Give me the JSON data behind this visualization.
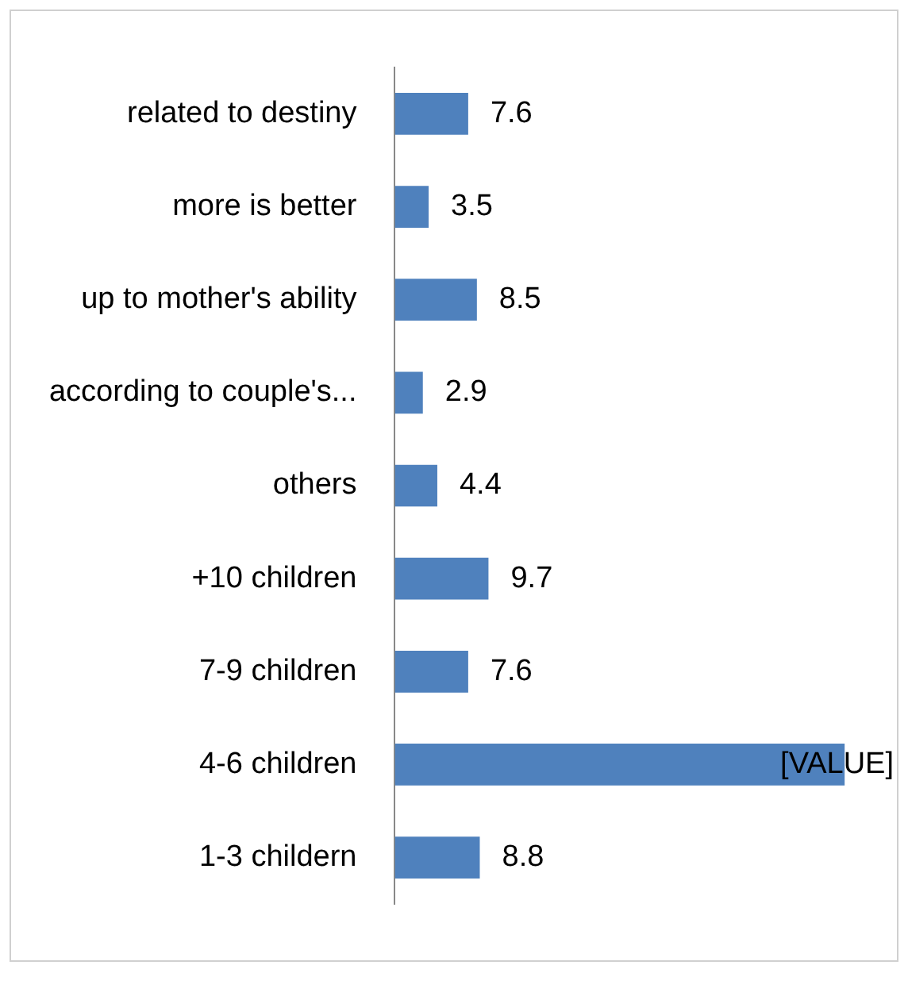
{
  "chart_data": {
    "type": "bar",
    "orientation": "horizontal",
    "categories": [
      "related to destiny",
      "more is better",
      "up to mother's ability",
      "according to couple's...",
      "others",
      "+10 children",
      "7-9 children",
      "4-6 children",
      "1-3 childern"
    ],
    "values": [
      7.6,
      3.5,
      8.5,
      2.9,
      4.4,
      9.7,
      7.6,
      46.6,
      8.8
    ],
    "value_labels": [
      "7.6",
      "3.5",
      "8.5",
      "2.9",
      "4.4",
      "9.7",
      "7.6",
      "[VALUE]",
      "8.8"
    ],
    "color": "#4f81bd",
    "legend": false
  }
}
